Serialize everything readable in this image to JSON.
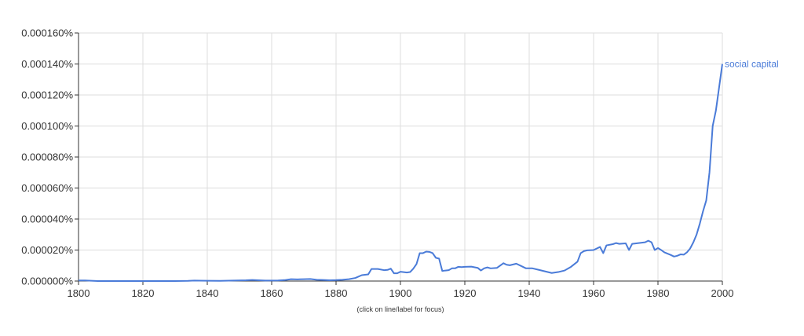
{
  "chart_data": {
    "type": "line",
    "title": "",
    "xlabel": "",
    "ylabel": "",
    "xlim": [
      1800,
      2000
    ],
    "ylim": [
      0,
      0.00016
    ],
    "x_ticks": [
      "1800",
      "1820",
      "1840",
      "1860",
      "1880",
      "1900",
      "1920",
      "1940",
      "1960",
      "1980",
      "2000"
    ],
    "y_ticks": [
      "0.000000%",
      "0.000020%",
      "0.000040%",
      "0.000060%",
      "0.000080%",
      "0.000100%",
      "0.000120%",
      "0.000140%",
      "0.000160%"
    ],
    "grid": true,
    "series": [
      {
        "name": "social capital",
        "color": "#4a7bd8",
        "points": [
          [
            1800,
            4e-07
          ],
          [
            1802,
            4e-07
          ],
          [
            1804,
            2e-07
          ],
          [
            1806,
            0
          ],
          [
            1810,
            0
          ],
          [
            1820,
            0
          ],
          [
            1830,
            0
          ],
          [
            1834,
            1e-07
          ],
          [
            1836,
            3e-07
          ],
          [
            1840,
            2e-07
          ],
          [
            1844,
            1e-07
          ],
          [
            1848,
            3e-07
          ],
          [
            1852,
            5e-07
          ],
          [
            1854,
            7e-07
          ],
          [
            1856,
            5e-07
          ],
          [
            1858,
            3e-07
          ],
          [
            1862,
            4e-07
          ],
          [
            1864,
            6e-07
          ],
          [
            1866,
            1.2e-06
          ],
          [
            1868,
            1.1e-06
          ],
          [
            1870,
            1.2e-06
          ],
          [
            1872,
            1.3e-06
          ],
          [
            1874,
            8e-07
          ],
          [
            1876,
            7e-07
          ],
          [
            1878,
            5e-07
          ],
          [
            1880,
            6e-07
          ],
          [
            1882,
            8e-07
          ],
          [
            1884,
            1.2e-06
          ],
          [
            1886,
            2e-06
          ],
          [
            1888,
            3.8e-06
          ],
          [
            1890,
            4.3e-06
          ],
          [
            1891,
            7.8e-06
          ],
          [
            1893,
            7.8e-06
          ],
          [
            1895,
            7e-06
          ],
          [
            1896,
            7.2e-06
          ],
          [
            1897,
            8e-06
          ],
          [
            1898,
            5e-06
          ],
          [
            1899,
            5e-06
          ],
          [
            1900,
            6e-06
          ],
          [
            1902,
            5.5e-06
          ],
          [
            1903,
            5.8e-06
          ],
          [
            1904,
            8e-06
          ],
          [
            1905,
            1.1e-05
          ],
          [
            1906,
            1.8e-05
          ],
          [
            1907,
            1.8e-05
          ],
          [
            1908,
            1.9e-05
          ],
          [
            1909,
            1.88e-05
          ],
          [
            1910,
            1.8e-05
          ],
          [
            1911,
            1.5e-05
          ],
          [
            1912,
            1.45e-05
          ],
          [
            1913,
            6.5e-06
          ],
          [
            1914,
            6.8e-06
          ],
          [
            1915,
            7e-06
          ],
          [
            1916,
            8.2e-06
          ],
          [
            1917,
            8.2e-06
          ],
          [
            1918,
            9.2e-06
          ],
          [
            1919,
            9e-06
          ],
          [
            1920,
            9.2e-06
          ],
          [
            1922,
            9.3e-06
          ],
          [
            1924,
            8.5e-06
          ],
          [
            1925,
            6.8e-06
          ],
          [
            1926,
            8.2e-06
          ],
          [
            1927,
            8.8e-06
          ],
          [
            1928,
            8.2e-06
          ],
          [
            1930,
            8.5e-06
          ],
          [
            1932,
            1.15e-05
          ],
          [
            1933,
            1.05e-05
          ],
          [
            1934,
            1.02e-05
          ],
          [
            1936,
            1.12e-05
          ],
          [
            1938,
            9.2e-06
          ],
          [
            1939,
            8.2e-06
          ],
          [
            1941,
            8.2e-06
          ],
          [
            1943,
            7.2e-06
          ],
          [
            1945,
            6.2e-06
          ],
          [
            1947,
            5.2e-06
          ],
          [
            1949,
            5.8e-06
          ],
          [
            1951,
            6.8e-06
          ],
          [
            1953,
            9.2e-06
          ],
          [
            1955,
            1.25e-05
          ],
          [
            1956,
            1.8e-05
          ],
          [
            1957,
            1.93e-05
          ],
          [
            1958,
            1.98e-05
          ],
          [
            1960,
            2e-05
          ],
          [
            1962,
            2.2e-05
          ],
          [
            1963,
            1.8e-05
          ],
          [
            1964,
            2.3e-05
          ],
          [
            1966,
            2.38e-05
          ],
          [
            1967,
            2.45e-05
          ],
          [
            1968,
            2.4e-05
          ],
          [
            1970,
            2.43e-05
          ],
          [
            1971,
            2e-05
          ],
          [
            1972,
            2.4e-05
          ],
          [
            1974,
            2.45e-05
          ],
          [
            1976,
            2.5e-05
          ],
          [
            1977,
            2.6e-05
          ],
          [
            1978,
            2.5e-05
          ],
          [
            1979,
            2e-05
          ],
          [
            1980,
            2.13e-05
          ],
          [
            1981,
            2e-05
          ],
          [
            1982,
            1.85e-05
          ],
          [
            1984,
            1.68e-05
          ],
          [
            1985,
            1.58e-05
          ],
          [
            1986,
            1.63e-05
          ],
          [
            1987,
            1.72e-05
          ],
          [
            1988,
            1.7e-05
          ],
          [
            1989,
            1.85e-05
          ],
          [
            1990,
            2.1e-05
          ],
          [
            1991,
            2.5e-05
          ],
          [
            1992,
            3e-05
          ],
          [
            1993,
            3.7e-05
          ],
          [
            1994,
            4.5e-05
          ],
          [
            1995,
            5.2e-05
          ],
          [
            1996,
            7e-05
          ],
          [
            1997,
            0.0001
          ],
          [
            1998,
            0.00011
          ],
          [
            1999,
            0.000125
          ],
          [
            2000,
            0.00014
          ]
        ]
      }
    ]
  },
  "footnote": "(click on line/label for focus)"
}
